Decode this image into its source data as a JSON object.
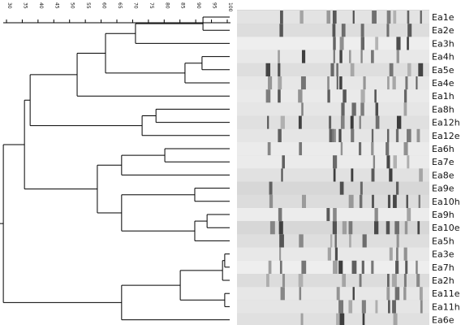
{
  "scale": {
    "ticks": [
      30,
      35,
      40,
      45,
      50,
      55,
      60,
      65,
      70,
      75,
      80,
      85,
      90,
      95,
      100
    ]
  },
  "tree": {
    "similarity": 29,
    "children": [
      {
        "similarity": 35.7,
        "children": [
          {
            "similarity": 37.5,
            "children": [
              {
                "similarity": 52.4,
                "children": [
                  {
                    "similarity": 61.4,
                    "children": [
                      {
                        "similarity": 70.9,
                        "children": [
                          {
                            "similarity": 92.3,
                            "children": [
                              {
                                "label": "Ea1e"
                              },
                              {
                                "label": "Ea2e"
                              }
                            ]
                          },
                          {
                            "label": "Ea3h"
                          }
                        ]
                      },
                      {
                        "similarity": 86.6,
                        "children": [
                          {
                            "similarity": 92,
                            "children": [
                              {
                                "label": "Ea4h"
                              },
                              {
                                "label": "Ea5e"
                              }
                            ]
                          },
                          {
                            "label": "Ea4e"
                          }
                        ]
                      }
                    ]
                  },
                  {
                    "label": "Ea1h"
                  }
                ]
              },
              {
                "similarity": 73,
                "children": [
                  {
                    "similarity": 77.4,
                    "children": [
                      {
                        "label": "Ea8h"
                      },
                      {
                        "label": "Ea12h"
                      }
                    ]
                  },
                  {
                    "label": "Ea12e"
                  }
                ]
              }
            ]
          },
          {
            "similarity": 58.8,
            "children": [
              {
                "similarity": 66.5,
                "children": [
                  {
                    "similarity": 80.2,
                    "children": [
                      {
                        "label": "Ea6h"
                      },
                      {
                        "label": "Ea7e"
                      }
                    ]
                  },
                  {
                    "label": "Ea8e"
                  }
                ]
              },
              {
                "similarity": 66.5,
                "children": [
                  {
                    "similarity": 89.7,
                    "children": [
                      {
                        "label": "Ea9e"
                      },
                      {
                        "label": "Ea10h"
                      }
                    ]
                  },
                  {
                    "similarity": 89.7,
                    "children": [
                      {
                        "similarity": 93.6,
                        "children": [
                          {
                            "label": "Ea9h"
                          },
                          {
                            "label": "Ea10e"
                          }
                        ]
                      },
                      {
                        "label": "Ea5h"
                      }
                    ]
                  }
                ]
              }
            ]
          }
        ]
      },
      {
        "similarity": 66.5,
        "children": [
          {
            "similarity": 85.1,
            "children": [
              {
                "similarity": 98.5,
                "children": [
                  {
                    "similarity": 99.2,
                    "children": [
                      {
                        "label": "Ea3e"
                      },
                      {
                        "label": "Ea7h"
                      }
                    ]
                  },
                  {
                    "label": "Ea2h"
                  }
                ]
              },
              {
                "similarity": 99.2,
                "children": [
                  {
                    "label": "Ea11e"
                  },
                  {
                    "label": "Ea11h"
                  }
                ]
              }
            ]
          },
          {
            "label": "Ea6e"
          }
        ]
      }
    ]
  }
}
